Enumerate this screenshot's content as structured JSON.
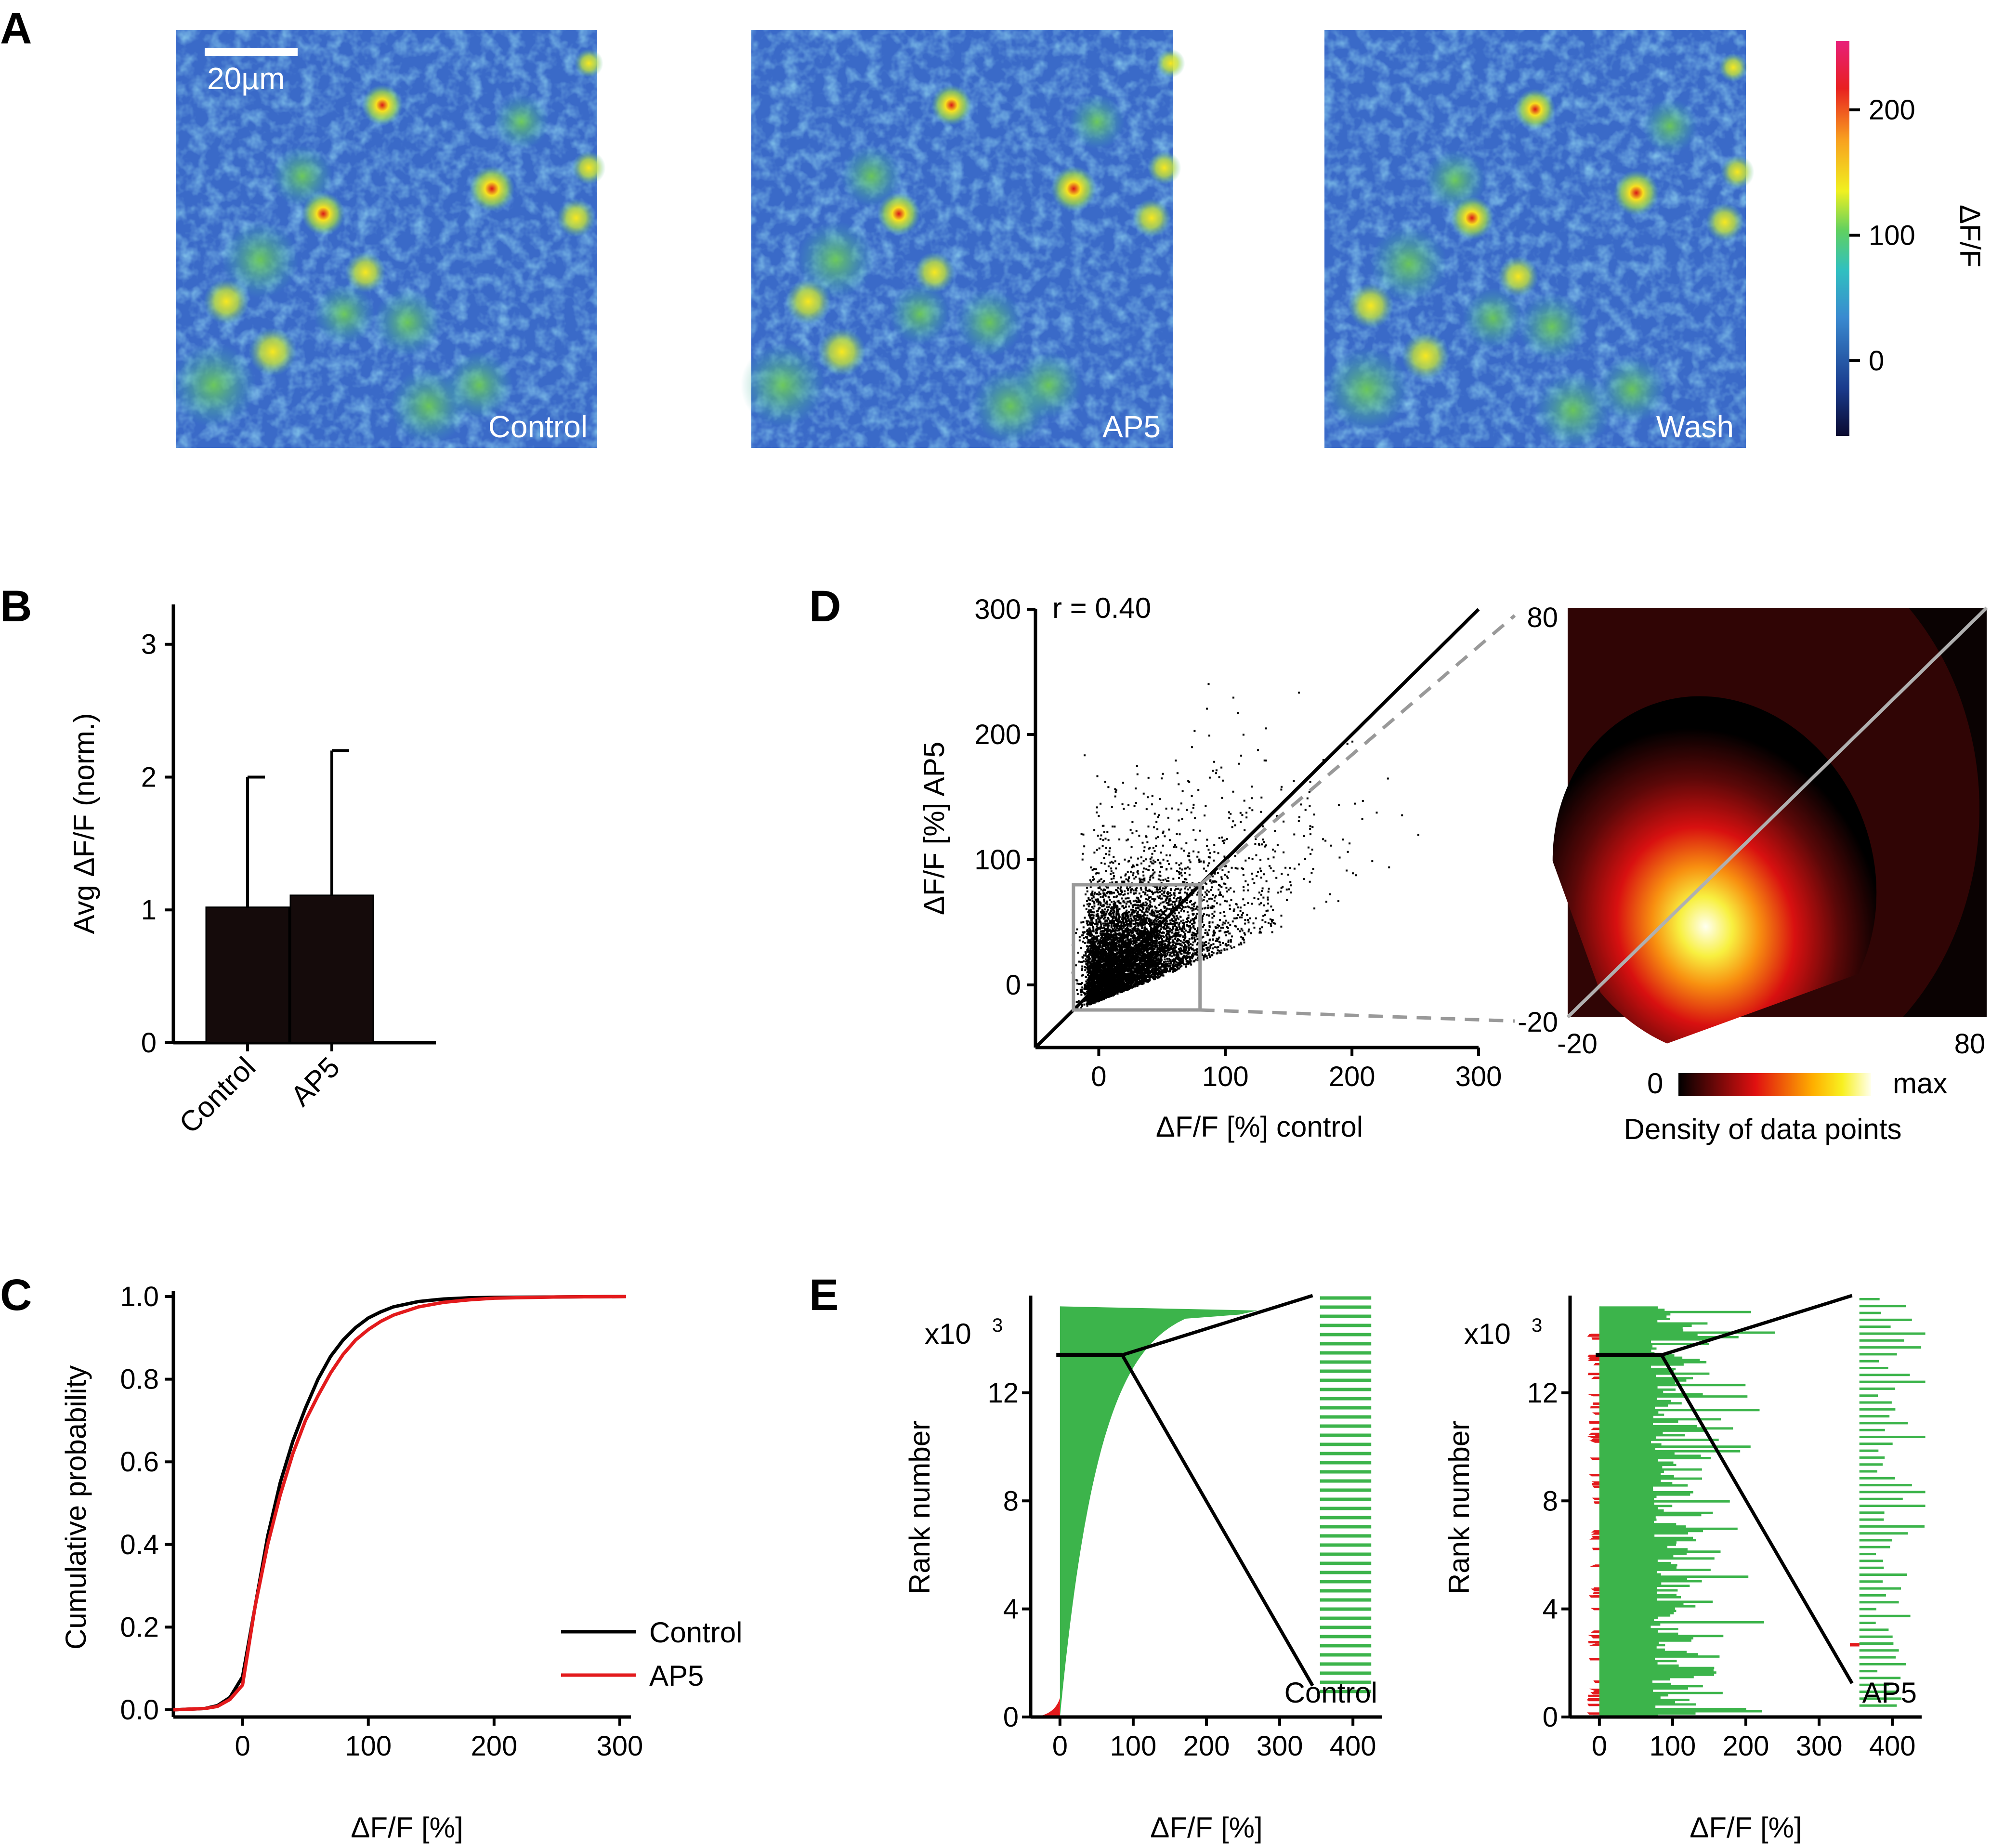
{
  "panels": {
    "A": "A",
    "B": "B",
    "C": "C",
    "D": "D",
    "E": "E"
  },
  "panel_a": {
    "scale_bar": "20µm",
    "images": [
      {
        "label": "Control"
      },
      {
        "label": "AP5"
      },
      {
        "label": "Wash"
      }
    ],
    "colorbar": {
      "label": "ΔF/F",
      "ticks": [
        0,
        100,
        200
      ],
      "range": [
        -60,
        255
      ]
    }
  },
  "chart_data": [
    {
      "id": "B",
      "type": "bar",
      "categories": [
        "Control",
        "AP5"
      ],
      "values": [
        1.02,
        1.11
      ],
      "errors": [
        0.98,
        1.09
      ],
      "ylabel": "Avg ΔF/F (norm.)",
      "ylim": [
        0,
        3.3
      ],
      "yticks": [
        0,
        1,
        2,
        3
      ]
    },
    {
      "id": "C",
      "type": "line",
      "xlabel": "ΔF/F [%]",
      "ylabel": "Cumulative probability",
      "xlim": [
        -55,
        305
      ],
      "ylim": [
        0,
        1
      ],
      "xticks": [
        0,
        100,
        200,
        300
      ],
      "yticks": [
        "0.0",
        "0.2",
        "0.4",
        "0.6",
        "0.8",
        "1.0"
      ],
      "legend": "bottom-right",
      "series": [
        {
          "name": "Control",
          "color": "#000000",
          "x": [
            -55,
            -30,
            -20,
            -10,
            0,
            10,
            20,
            30,
            40,
            50,
            60,
            70,
            80,
            90,
            100,
            110,
            120,
            140,
            160,
            180,
            200,
            250,
            305
          ],
          "y": [
            0,
            0.003,
            0.01,
            0.03,
            0.08,
            0.25,
            0.42,
            0.55,
            0.65,
            0.73,
            0.8,
            0.855,
            0.895,
            0.925,
            0.948,
            0.963,
            0.975,
            0.988,
            0.994,
            0.997,
            0.998,
            0.999,
            1.0
          ]
        },
        {
          "name": "AP5",
          "color": "#e31a1c",
          "x": [
            -55,
            -30,
            -20,
            -10,
            0,
            10,
            20,
            30,
            40,
            50,
            60,
            70,
            80,
            90,
            100,
            110,
            120,
            140,
            160,
            180,
            200,
            250,
            305
          ],
          "y": [
            0,
            0.003,
            0.008,
            0.025,
            0.06,
            0.25,
            0.4,
            0.52,
            0.62,
            0.7,
            0.76,
            0.815,
            0.86,
            0.895,
            0.92,
            0.94,
            0.955,
            0.975,
            0.986,
            0.992,
            0.996,
            0.999,
            1.0
          ]
        }
      ]
    },
    {
      "id": "D",
      "type": "scatter",
      "annotation": "r = 0.40",
      "xlabel": "ΔF/F [%] control",
      "ylabel": "ΔF/F [%] AP5",
      "xlim": [
        -50,
        300
      ],
      "ylim": [
        -50,
        300
      ],
      "xticks": [
        0,
        100,
        200,
        300
      ],
      "yticks": [
        0,
        100,
        200,
        300
      ],
      "inset_range": [
        -20,
        80
      ]
    },
    {
      "id": "D-density",
      "type": "heatmap",
      "xlim": [
        -20,
        80
      ],
      "ylim": [
        -20,
        80
      ],
      "tick_labels": [
        "-20",
        "80"
      ],
      "colorbar": {
        "min": "0",
        "max": "max",
        "label": "Density of data points"
      }
    },
    {
      "id": "E-control",
      "type": "bar",
      "xlabel": "ΔF/F [%]",
      "ylabel": "Rank number",
      "multiplier": "x10",
      "multiplier_exp": "3",
      "annotation": "Control",
      "xlim": [
        -40,
        440
      ],
      "ylim": [
        0,
        15.6
      ],
      "xticks": [
        0,
        100,
        200,
        300,
        400
      ],
      "yticks": [
        0,
        4,
        8,
        12
      ]
    },
    {
      "id": "E-ap5",
      "type": "bar",
      "xlabel": "ΔF/F [%]",
      "ylabel": "Rank number",
      "multiplier": "x10",
      "multiplier_exp": "3",
      "annotation": "AP5",
      "xlim": [
        -40,
        440
      ],
      "ylim": [
        0,
        15.6
      ],
      "xticks": [
        0,
        100,
        200,
        300,
        400
      ],
      "yticks": [
        0,
        4,
        8,
        12
      ]
    }
  ],
  "colors": {
    "black": "#000000",
    "red": "#e31a1c",
    "green": "#3cb44b",
    "gray": "#a0a0a0"
  }
}
